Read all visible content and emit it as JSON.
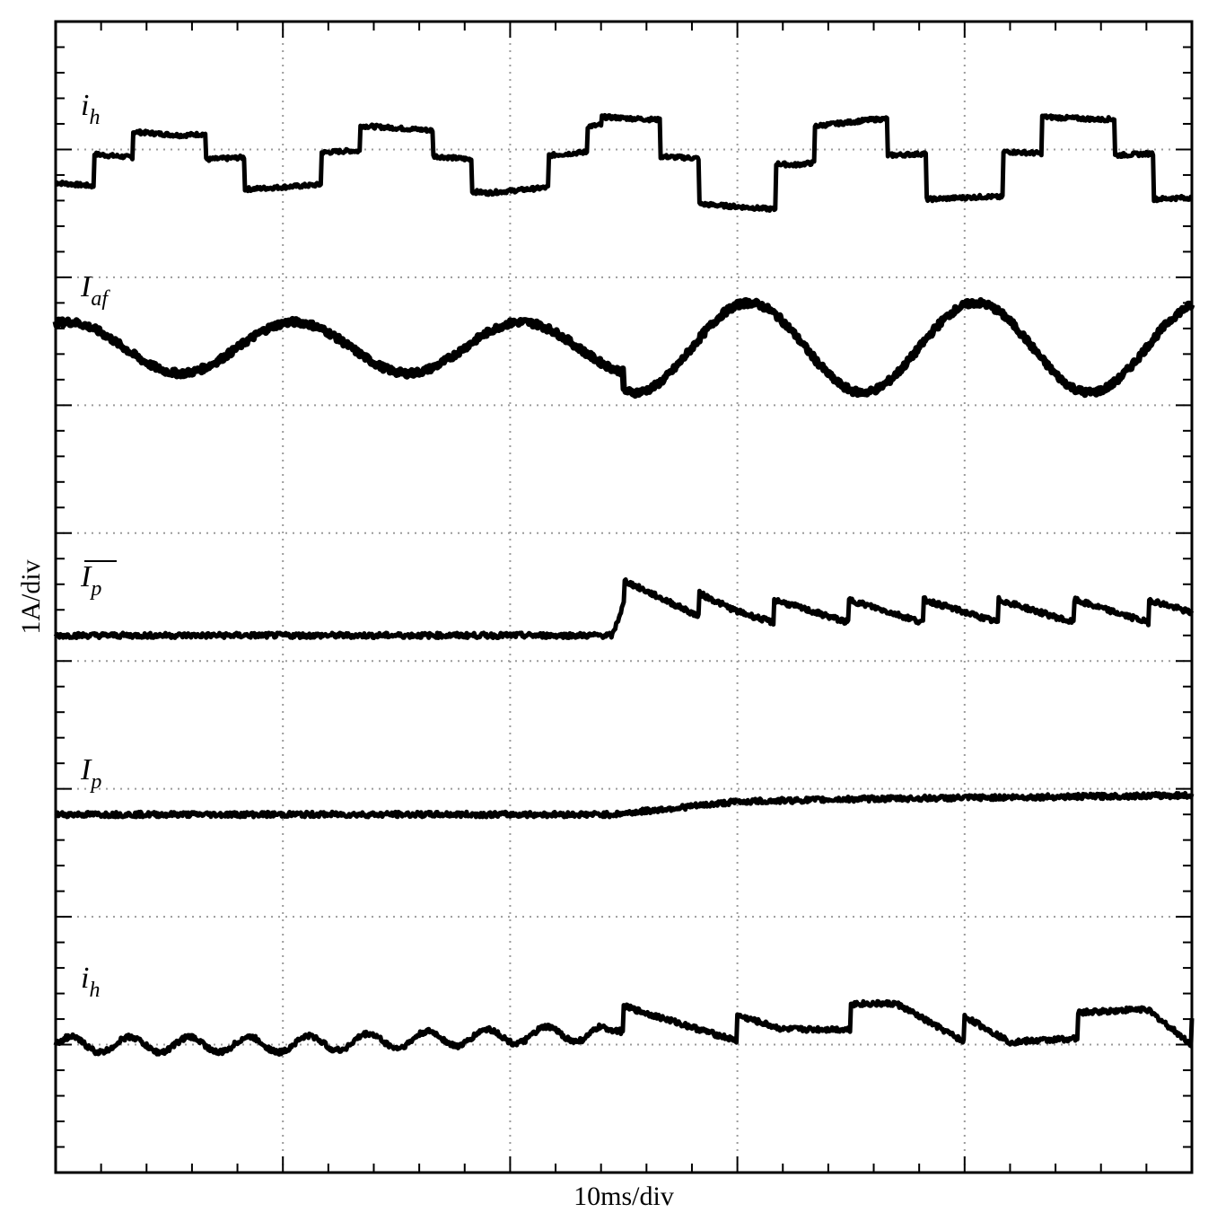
{
  "chart_data": {
    "type": "line",
    "title": "",
    "xlabel": "10ms/div",
    "ylabel": "1A/div",
    "x_divisions": 5,
    "y_divisions": 9,
    "grid": true,
    "x_range": [
      0,
      50
    ],
    "x_unit": "ms",
    "y_unit": "A",
    "traces": [
      {
        "name": "i_h",
        "label_main": "i",
        "label_sub": "h",
        "overbar": false,
        "shape": "staircase",
        "x": [
          0,
          2.5,
          5.5,
          9.5,
          13,
          16.5,
          19,
          24,
          28.5,
          32.5,
          36,
          41,
          46,
          49.5
        ],
        "y": [
          8.2,
          8.0,
          7.8,
          8.0,
          8.2,
          8.0,
          7.8,
          8.2,
          8.0,
          7.75,
          8.1,
          8.3,
          8.1,
          8.25
        ]
      },
      {
        "name": "I_af",
        "label_main": "I",
        "label_sub": "af",
        "overbar": false,
        "shape": "sine",
        "x": [
          0,
          5,
          10,
          15,
          20,
          25,
          30,
          35,
          40,
          45,
          50
        ],
        "y": [
          6.3,
          6.65,
          6.25,
          6.65,
          6.25,
          6.65,
          6.1,
          6.8,
          6.1,
          6.8,
          6.3
        ]
      },
      {
        "name": "I_p_avg",
        "label_main": "I",
        "label_sub": "p",
        "overbar": true,
        "shape": "sawtooth",
        "x": [
          0,
          10,
          24.5,
          25,
          30,
          40,
          50
        ],
        "y": [
          4.2,
          4.2,
          4.2,
          4.45,
          4.3,
          4.3,
          4.3
        ]
      },
      {
        "name": "I_p",
        "label_main": "I",
        "label_sub": "p",
        "overbar": false,
        "shape": "ramp",
        "x": [
          0,
          24.5,
          30,
          35,
          50
        ],
        "y": [
          2.8,
          2.8,
          2.9,
          2.92,
          2.95
        ]
      },
      {
        "name": "i_h_out",
        "label_main": "i",
        "label_sub": "h",
        "overbar": false,
        "shape": "ripple",
        "x": [
          0,
          10,
          25,
          32,
          37,
          42,
          48,
          50
        ],
        "y": [
          1.0,
          1.0,
          1.1,
          1.0,
          1.2,
          0.9,
          1.2,
          1.0
        ]
      }
    ]
  },
  "colors": {
    "trace": "#000000",
    "grid": "#9a9a9a",
    "frame": "#000000",
    "background": "#ffffff"
  }
}
